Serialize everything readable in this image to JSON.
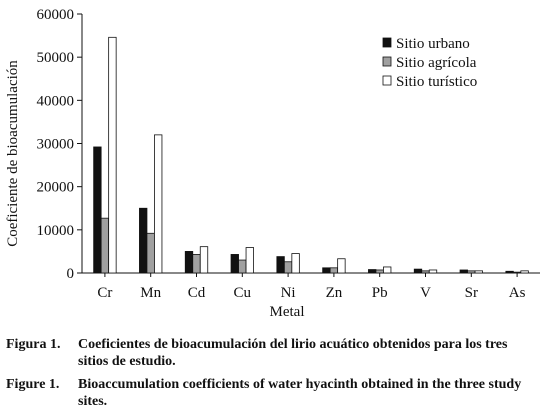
{
  "chart_data": {
    "type": "bar",
    "xlabel": "Metal",
    "ylabel": "Coeficiente de bioacumulación",
    "ylim": [
      0,
      60000
    ],
    "yticks": [
      0,
      10000,
      20000,
      30000,
      40000,
      50000,
      60000
    ],
    "categories": [
      "Cr",
      "Mn",
      "Cd",
      "Cu",
      "Ni",
      "Zn",
      "Pb",
      "V",
      "Sr",
      "As"
    ],
    "series": [
      {
        "name": "Sitio urbano",
        "color": "#111111",
        "values": [
          29200,
          15000,
          5000,
          4300,
          3800,
          1200,
          800,
          900,
          700,
          400
        ]
      },
      {
        "name": "Sitio agrícola",
        "color": "#a0a0a0",
        "values": [
          12700,
          9200,
          4300,
          3000,
          2600,
          1200,
          700,
          500,
          500,
          200
        ]
      },
      {
        "name": "Sitio turístico",
        "color": "#ffffff",
        "values": [
          54600,
          32000,
          6100,
          5900,
          4500,
          3300,
          1400,
          700,
          500,
          500
        ]
      }
    ],
    "legend_position": "top-right",
    "grid": false
  },
  "captions": [
    {
      "lead": "Figura 1.",
      "text": "Coeficientes de bioacumulación  del lirio acuático obtenidos para los tres sitios de estudio."
    },
    {
      "lead": "Figure 1.",
      "text": "Bioaccumulation coefficients of water hyacinth obtained in the three study sites."
    }
  ]
}
